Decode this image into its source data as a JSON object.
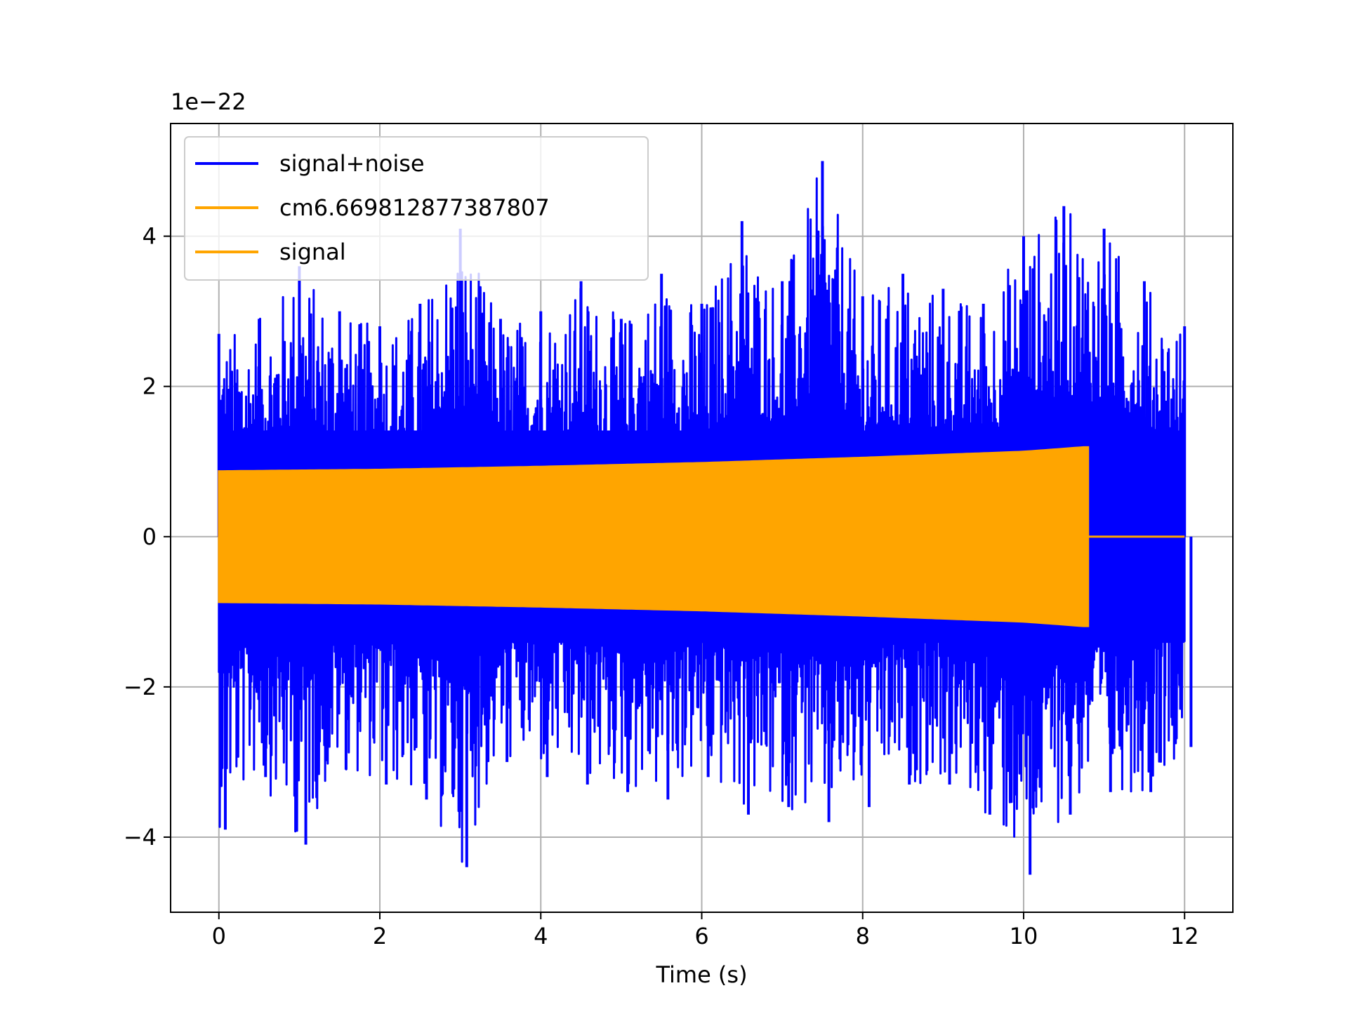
{
  "chart_data": {
    "type": "line",
    "title": "",
    "xlabel": "Time (s)",
    "ylabel": "",
    "offset_text": "1e−22",
    "xlim": [
      -0.6,
      12.6
    ],
    "ylim": [
      -5.0,
      5.5
    ],
    "xticks": [
      0,
      2,
      4,
      6,
      8,
      10,
      12
    ],
    "xtick_labels": [
      "0",
      "2",
      "4",
      "6",
      "8",
      "10",
      "12"
    ],
    "yticks": [
      -4,
      -2,
      0,
      2,
      4
    ],
    "ytick_labels": [
      "−4",
      "−2",
      "0",
      "2",
      "4"
    ],
    "grid": true,
    "legend_placement": "upper left",
    "legend": [
      {
        "label": "signal+noise",
        "color": "#0000ff"
      },
      {
        "label": "cm6.669812877387807",
        "color": "#ffa500"
      },
      {
        "label": "signal",
        "color": "#ffa500"
      }
    ],
    "series": [
      {
        "name": "signal+noise",
        "color": "#0000ff",
        "x_range": [
          0,
          12
        ],
        "envelope_x": [
          0,
          0.5,
          1,
          1.5,
          2,
          2.5,
          3,
          3.5,
          4,
          4.5,
          5,
          5.5,
          6,
          6.5,
          7,
          7.5,
          8,
          8.5,
          9,
          9.5,
          10,
          10.5,
          11,
          11.5,
          12
        ],
        "upper": [
          2.7,
          2.9,
          3.6,
          3.0,
          2.8,
          3.1,
          4.1,
          2.9,
          3.0,
          3.4,
          2.9,
          3.5,
          3.1,
          4.2,
          3.4,
          5.0,
          3.2,
          3.5,
          3.3,
          3.1,
          4.0,
          4.4,
          4.1,
          3.4,
          2.8
        ],
        "lower": [
          -3.9,
          -3.2,
          -4.1,
          -3.1,
          -3.3,
          -3.5,
          -4.4,
          -3.0,
          -3.2,
          -3.3,
          -3.4,
          -3.5,
          -3.2,
          -3.7,
          -3.6,
          -3.8,
          -3.6,
          -3.3,
          -3.3,
          -3.7,
          -4.5,
          -3.7,
          -3.4,
          -3.4,
          -2.8
        ]
      },
      {
        "name": "signal",
        "color": "#ffa500",
        "x_range": [
          0,
          12
        ],
        "signal_end": 10.8,
        "amplitude_x": [
          0,
          2,
          4,
          6,
          8,
          10,
          10.75
        ],
        "amplitude": [
          0.87,
          0.89,
          0.93,
          0.98,
          1.05,
          1.13,
          1.19
        ]
      }
    ]
  }
}
